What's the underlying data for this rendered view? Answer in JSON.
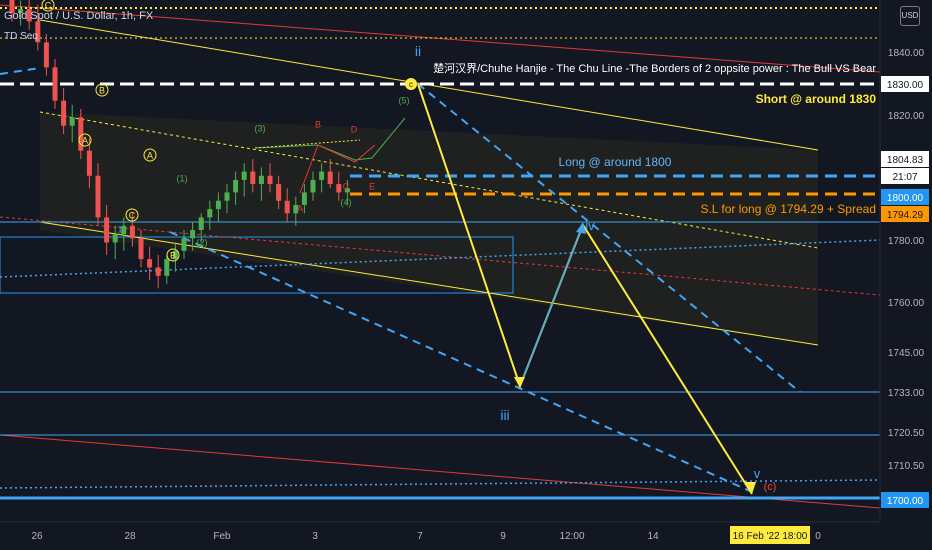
{
  "header": {
    "symbol_line": "Gold Spot / U.S. Dollar, 1h, FX",
    "indicator": "TD Seq"
  },
  "currency_button": "USD",
  "chart_data": {
    "type": "candlestick-annotated",
    "symbol": "Gold Spot / U.S. Dollar",
    "timeframe": "1h",
    "x_tick_labels": [
      "26",
      "28",
      "Feb",
      "3",
      "7",
      "9",
      "12:00",
      "14",
      "16 Feb '22  18:00",
      "0"
    ],
    "y_tick_labels": [
      "1840.00",
      "1830.00",
      "1820.00",
      "1800.00",
      "1780.00",
      "1760.00",
      "1745.00",
      "1733.00",
      "1720.50",
      "1710.50",
      "1700.00"
    ],
    "ylim": [
      1697,
      1852
    ],
    "price_badges": [
      {
        "label": "1830.00",
        "price": 1830.0,
        "color": "#ffffff",
        "text_color": "#131722"
      },
      {
        "label": "1804.83",
        "price": 1804.83,
        "color": "#ffffff",
        "text_color": "#131722"
      },
      {
        "label": "21:07",
        "price": 1802.6,
        "color": "#ffffff",
        "text_color": "#131722"
      },
      {
        "label": "1800.00",
        "price": 1800.0,
        "color": "#2196f3",
        "text_color": "#ffffff"
      },
      {
        "label": "1794.29",
        "price": 1794.29,
        "color": "#ff9800",
        "text_color": "#131722"
      },
      {
        "label": "1700.00",
        "price": 1700.0,
        "color": "#2196f3",
        "text_color": "#ffffff"
      }
    ],
    "annotations": [
      {
        "text": "楚河汉界/Chuhe Hanjie - The Chu Line -The Borders of 2 oppsite power : The Bull VS Bear",
        "color": "#ffffff"
      },
      {
        "text": "Short @ around 1830",
        "color": "#ffeb3b"
      },
      {
        "text": "Long @ around 1800",
        "color": "#64b5f6"
      },
      {
        "text": "S.L for long @ 1794.29 + Spread",
        "color": "#ff9800"
      },
      {
        "text": "ii",
        "color": "#42a5f5"
      },
      {
        "text": "iii",
        "color": "#42a5f5"
      },
      {
        "text": "iv",
        "color": "#42a5f5"
      },
      {
        "text": "v",
        "color": "#42a5f5"
      },
      {
        "text": "(c)",
        "color": "#f44336"
      }
    ],
    "wave_labels": [
      "A",
      "B",
      "C",
      "A",
      "B",
      "C",
      "(1)",
      "(2)",
      "(3)",
      "(4)",
      "(5)",
      "A",
      "B",
      "C",
      "D",
      "E",
      "1"
    ],
    "projection_path_yellow": [
      {
        "x": "7",
        "price": 1830
      },
      {
        "x": "9",
        "price": 1733
      },
      {
        "x": "12:00",
        "price": 1786
      },
      {
        "x": "16 Feb '22",
        "price": 1701
      }
    ],
    "horizontal_levels": [
      1830,
      1800,
      1794.29,
      1786,
      1733,
      1720.5,
      1700
    ],
    "series": [
      {
        "type": "candles",
        "ohlc": [
          [
            1851,
            1852,
            1845,
            1847
          ],
          [
            1847,
            1850,
            1844,
            1848
          ],
          [
            1848,
            1851,
            1843,
            1845
          ],
          [
            1845,
            1849,
            1838,
            1840
          ],
          [
            1840,
            1842,
            1832,
            1834
          ],
          [
            1834,
            1836,
            1824,
            1826
          ],
          [
            1826,
            1829,
            1818,
            1820
          ],
          [
            1820,
            1825,
            1816,
            1822
          ],
          [
            1822,
            1824,
            1812,
            1814
          ],
          [
            1814,
            1817,
            1805,
            1808
          ],
          [
            1808,
            1811,
            1796,
            1798
          ],
          [
            1798,
            1801,
            1789,
            1792
          ],
          [
            1792,
            1796,
            1788,
            1794
          ],
          [
            1794,
            1798,
            1790,
            1796
          ],
          [
            1796,
            1799,
            1791,
            1793
          ],
          [
            1793,
            1795,
            1786,
            1788
          ],
          [
            1788,
            1791,
            1783,
            1786
          ],
          [
            1786,
            1789,
            1781,
            1784
          ],
          [
            1784,
            1789,
            1782,
            1788
          ],
          [
            1788,
            1792,
            1785,
            1790
          ],
          [
            1790,
            1795,
            1788,
            1793
          ],
          [
            1793,
            1797,
            1790,
            1795
          ],
          [
            1795,
            1799,
            1792,
            1798
          ],
          [
            1798,
            1802,
            1795,
            1800
          ],
          [
            1800,
            1804,
            1797,
            1802
          ],
          [
            1802,
            1806,
            1799,
            1804
          ],
          [
            1804,
            1809,
            1801,
            1807
          ],
          [
            1807,
            1811,
            1803,
            1809
          ],
          [
            1809,
            1812,
            1804,
            1806
          ],
          [
            1806,
            1810,
            1802,
            1808
          ],
          [
            1808,
            1811,
            1804,
            1806
          ],
          [
            1806,
            1808,
            1800,
            1802
          ],
          [
            1802,
            1805,
            1797,
            1799
          ],
          [
            1799,
            1803,
            1796,
            1801
          ],
          [
            1801,
            1806,
            1799,
            1804
          ],
          [
            1804,
            1809,
            1802,
            1807
          ],
          [
            1807,
            1811,
            1804,
            1809
          ],
          [
            1809,
            1812,
            1805,
            1806
          ],
          [
            1806,
            1809,
            1802,
            1804
          ],
          [
            1804,
            1807,
            1801,
            1805
          ]
        ]
      }
    ]
  }
}
